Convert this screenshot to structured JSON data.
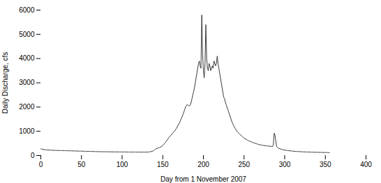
{
  "chart_data": {
    "type": "line",
    "xlabel": "Day from 1 November 2007",
    "ylabel": "Daily Discharge, cfs",
    "color": "#3a3a3a",
    "xlim": [
      0,
      400
    ],
    "ylim": [
      0,
      6000
    ],
    "xticks": [
      0,
      50,
      100,
      150,
      200,
      250,
      300,
      350,
      400
    ],
    "yticks": [
      0,
      1000,
      2000,
      3000,
      4000,
      5000,
      6000
    ],
    "x": [
      0,
      1,
      2,
      3,
      4,
      5,
      6,
      7,
      8,
      9,
      10,
      11,
      12,
      13,
      14,
      15,
      16,
      17,
      18,
      19,
      20,
      21,
      22,
      23,
      24,
      25,
      26,
      27,
      28,
      29,
      30,
      31,
      32,
      33,
      34,
      35,
      36,
      37,
      38,
      39,
      40,
      41,
      42,
      43,
      44,
      45,
      46,
      47,
      48,
      49,
      50,
      51,
      52,
      53,
      54,
      55,
      56,
      57,
      58,
      59,
      60,
      61,
      62,
      63,
      64,
      65,
      66,
      67,
      68,
      69,
      70,
      71,
      72,
      73,
      74,
      75,
      76,
      77,
      78,
      79,
      80,
      81,
      82,
      83,
      84,
      85,
      86,
      87,
      88,
      89,
      90,
      91,
      92,
      93,
      94,
      95,
      96,
      97,
      98,
      99,
      100,
      101,
      102,
      103,
      104,
      105,
      106,
      107,
      108,
      109,
      110,
      111,
      112,
      113,
      114,
      115,
      116,
      117,
      118,
      119,
      120,
      121,
      122,
      123,
      124,
      125,
      126,
      127,
      128,
      129,
      130,
      131,
      132,
      133,
      134,
      135,
      136,
      137,
      138,
      139,
      140,
      141,
      142,
      143,
      144,
      145,
      146,
      147,
      148,
      149,
      150,
      151,
      152,
      153,
      154,
      155,
      156,
      157,
      158,
      159,
      160,
      161,
      162,
      163,
      164,
      165,
      166,
      167,
      168,
      169,
      170,
      171,
      172,
      173,
      174,
      175,
      176,
      177,
      178,
      179,
      180,
      181,
      182,
      183,
      184,
      185,
      186,
      187,
      188,
      189,
      190,
      191,
      192,
      193,
      194,
      195,
      196,
      197,
      198,
      199,
      200,
      201,
      202,
      203,
      204,
      205,
      206,
      207,
      208,
      209,
      210,
      211,
      212,
      213,
      214,
      215,
      216,
      217,
      218,
      219,
      220,
      221,
      222,
      223,
      224,
      225,
      226,
      227,
      228,
      229,
      230,
      231,
      232,
      233,
      234,
      235,
      236,
      237,
      238,
      239,
      240,
      241,
      242,
      243,
      244,
      245,
      246,
      247,
      248,
      249,
      250,
      251,
      252,
      253,
      254,
      255,
      256,
      257,
      258,
      259,
      260,
      261,
      262,
      263,
      264,
      265,
      266,
      267,
      268,
      269,
      270,
      271,
      272,
      273,
      274,
      275,
      276,
      277,
      278,
      279,
      280,
      281,
      282,
      283,
      284,
      285,
      286,
      287,
      288,
      289,
      290,
      291,
      292,
      293,
      294,
      295,
      296,
      297,
      298,
      299,
      300,
      301,
      302,
      303,
      304,
      305,
      306,
      307,
      308,
      309,
      310,
      311,
      312,
      313,
      314,
      315,
      316,
      317,
      318,
      319,
      320,
      321,
      322,
      323,
      324,
      325,
      326,
      327,
      328,
      329,
      330,
      331,
      332,
      333,
      334,
      335,
      336,
      337,
      338,
      339,
      340,
      341,
      342,
      343,
      344,
      345,
      346,
      347,
      348,
      349,
      350,
      351,
      352,
      353,
      354,
      355
    ],
    "values": [
      280,
      265,
      255,
      248,
      242,
      238,
      235,
      232,
      230,
      228,
      226,
      224,
      222,
      220,
      218,
      216,
      214,
      213,
      212,
      211,
      210,
      209,
      208,
      207,
      206,
      205,
      204,
      203,
      202,
      201,
      200,
      199,
      198,
      197,
      196,
      195,
      194,
      193,
      192,
      191,
      190,
      189,
      188,
      187,
      186,
      185,
      184,
      183,
      182,
      181,
      180,
      179,
      178,
      177,
      176,
      175,
      174,
      173,
      172,
      171,
      170,
      169,
      168,
      167,
      166,
      165,
      164,
      163,
      162,
      161,
      160,
      160,
      159,
      158,
      158,
      157,
      157,
      156,
      156,
      155,
      155,
      154,
      154,
      153,
      153,
      152,
      152,
      151,
      151,
      150,
      150,
      150,
      149,
      149,
      149,
      148,
      148,
      148,
      147,
      147,
      147,
      146,
      146,
      146,
      145,
      145,
      145,
      144,
      144,
      144,
      143,
      143,
      143,
      143,
      142,
      142,
      142,
      142,
      141,
      141,
      141,
      141,
      140,
      140,
      140,
      140,
      140,
      139,
      139,
      139,
      140,
      142,
      145,
      148,
      152,
      158,
      165,
      175,
      190,
      210,
      235,
      260,
      280,
      295,
      305,
      318,
      330,
      345,
      362,
      385,
      415,
      450,
      490,
      530,
      575,
      620,
      668,
      715,
      760,
      800,
      840,
      875,
      910,
      950,
      990,
      1030,
      1080,
      1130,
      1190,
      1250,
      1310,
      1380,
      1460,
      1540,
      1620,
      1710,
      1800,
      1900,
      2000,
      2050,
      2100,
      2080,
      2060,
      2050,
      2100,
      2200,
      2350,
      2500,
      2650,
      2800,
      3000,
      3200,
      3400,
      3600,
      3800,
      3900,
      3700,
      3600,
      5800,
      4200,
      3500,
      3200,
      3800,
      5400,
      4000,
      3600,
      3500,
      3800,
      3700,
      3500,
      3600,
      3700,
      3600,
      3900,
      3800,
      3700,
      3800,
      4100,
      3800,
      3600,
      3400,
      3200,
      3000,
      2800,
      2600,
      2400,
      2350,
      2200,
      2100,
      2000,
      1900,
      1800,
      1700,
      1600,
      1500,
      1400,
      1320,
      1240,
      1180,
      1120,
      1070,
      1020,
      980,
      940,
      900,
      870,
      840,
      810,
      780,
      750,
      720,
      700,
      680,
      660,
      640,
      620,
      605,
      590,
      575,
      560,
      548,
      535,
      522,
      510,
      498,
      488,
      478,
      468,
      458,
      450,
      442,
      434,
      428,
      422,
      416,
      410,
      406,
      402,
      398,
      394,
      390,
      386,
      382,
      378,
      374,
      370,
      450,
      920,
      850,
      600,
      380,
      340,
      310,
      295,
      280,
      268,
      258,
      248,
      240,
      233,
      226,
      220,
      215,
      210,
      205,
      200,
      196,
      192,
      188,
      184,
      181,
      178,
      175,
      172,
      170,
      167,
      165,
      163,
      161,
      159,
      157,
      155,
      153,
      151,
      150,
      148,
      147,
      145,
      144,
      143,
      142,
      141,
      140,
      139,
      138,
      137,
      136,
      135,
      134,
      133,
      132,
      131,
      130,
      129,
      128,
      127,
      126,
      125,
      125,
      124,
      124,
      123,
      123,
      122,
      122,
      121
    ]
  }
}
